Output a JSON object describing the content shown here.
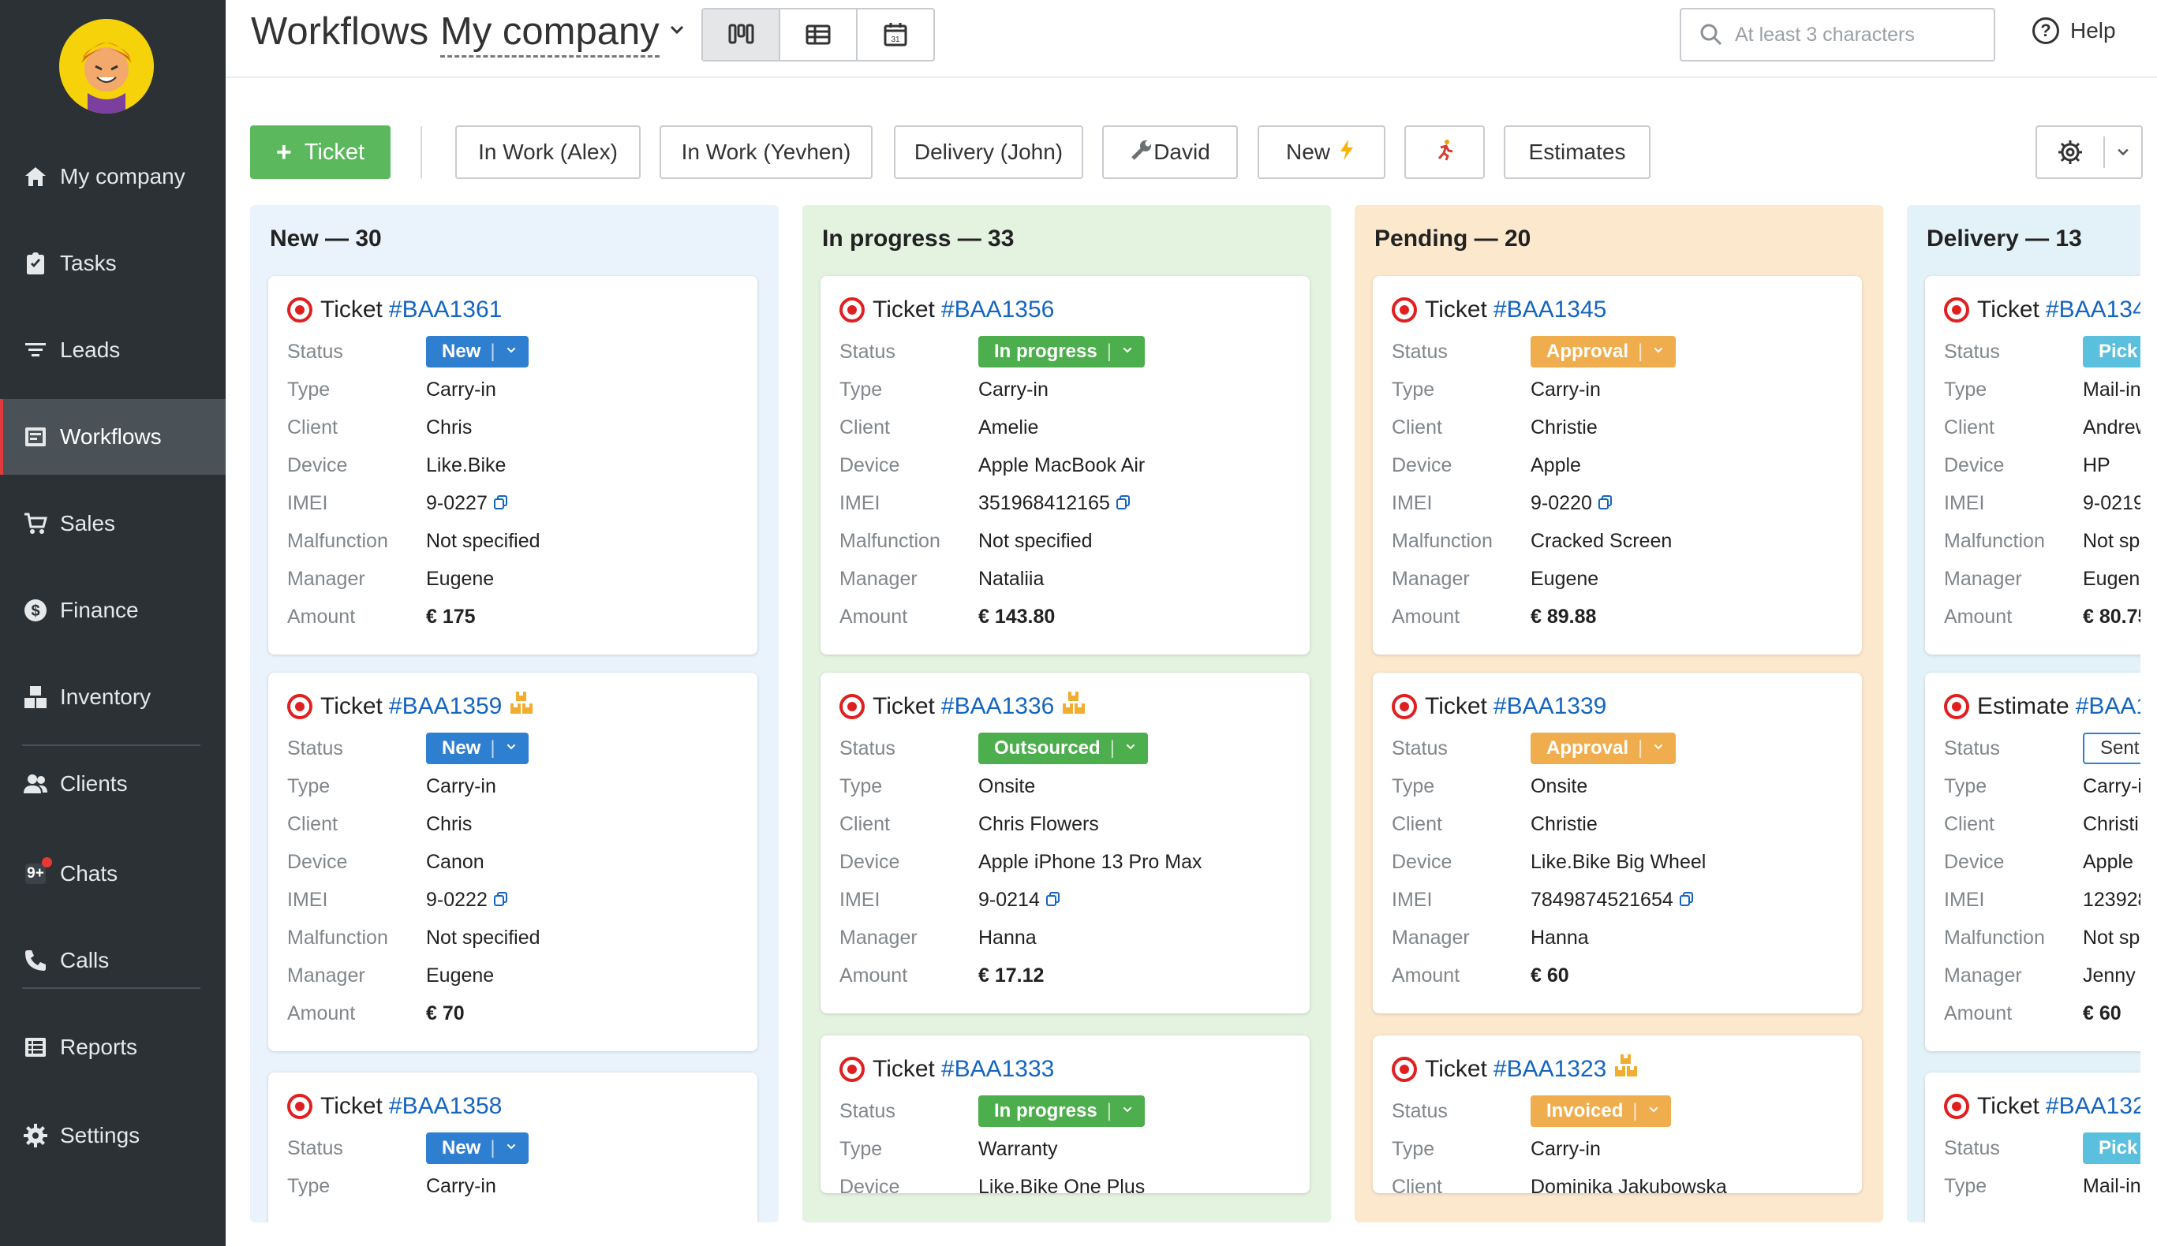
{
  "sidebar": {
    "items": [
      {
        "label": "My company",
        "icon": "home-icon"
      },
      {
        "label": "Tasks",
        "icon": "clipboard-check-icon"
      },
      {
        "label": "Leads",
        "icon": "filter-icon"
      },
      {
        "label": "Workflows",
        "icon": "board-icon",
        "active": true
      },
      {
        "label": "Sales",
        "icon": "cart-icon"
      },
      {
        "label": "Finance",
        "icon": "dollar-icon"
      },
      {
        "label": "Inventory",
        "icon": "boxes-icon"
      },
      {
        "label": "Clients",
        "icon": "users-icon"
      },
      {
        "label": "Chats",
        "icon": "chat-icon",
        "badge": "9+"
      },
      {
        "label": "Calls",
        "icon": "phone-icon"
      },
      {
        "label": "Reports",
        "icon": "reports-icon"
      },
      {
        "label": "Settings",
        "icon": "gear-icon"
      }
    ]
  },
  "header": {
    "title": "Workflows",
    "company": "My company",
    "search_placeholder": "At least 3 characters",
    "help_label": "Help",
    "help_icon_text": "?"
  },
  "filters": {
    "add_label": "Ticket",
    "add_plus": "+",
    "buttons": [
      "In Work (Alex)",
      "In Work (Yevhen)",
      "Delivery (John)",
      "David",
      "New",
      "",
      "Estimates"
    ]
  },
  "columns": [
    {
      "title": "New — 30",
      "cards": [
        {
          "kind": "Ticket",
          "id": "#BAA1361",
          "boxes": false,
          "status": "New",
          "type": "Carry-in",
          "client": "Chris",
          "device": "Like.Bike",
          "imei": "9-0227",
          "malfunction": "Not specified",
          "manager": "Eugene",
          "amount": "€ 175"
        },
        {
          "kind": "Ticket",
          "id": "#BAA1359",
          "boxes": true,
          "status": "New",
          "type": "Carry-in",
          "client": "Chris",
          "device": "Canon",
          "imei": "9-0222",
          "malfunction": "Not specified",
          "manager": "Eugene",
          "amount": "€ 70"
        },
        {
          "kind": "Ticket",
          "id": "#BAA1358",
          "boxes": false,
          "status": "New",
          "type": "Carry-in"
        }
      ]
    },
    {
      "title": "In progress — 33",
      "cards": [
        {
          "kind": "Ticket",
          "id": "#BAA1356",
          "boxes": false,
          "status": "In progress",
          "type": "Carry-in",
          "client": "Amelie",
          "device": "Apple MacBook Air",
          "imei": "351968412165",
          "malfunction": "Not specified",
          "manager": "Nataliia",
          "amount": "€ 143.80"
        },
        {
          "kind": "Ticket",
          "id": "#BAA1336",
          "boxes": true,
          "status": "Outsourced",
          "type": "Onsite",
          "client": "Chris Flowers",
          "device": "Apple iPhone 13 Pro Max",
          "imei": "9-0214",
          "manager": "Hanna",
          "amount": "€ 17.12"
        },
        {
          "kind": "Ticket",
          "id": "#BAA1333",
          "boxes": false,
          "status": "In progress",
          "type": "Warranty",
          "device": "Like.Bike One Plus"
        }
      ]
    },
    {
      "title": "Pending — 20",
      "cards": [
        {
          "kind": "Ticket",
          "id": "#BAA1345",
          "boxes": false,
          "status": "Approval",
          "type": "Carry-in",
          "client": "Christie",
          "device": "Apple",
          "imei": "9-0220",
          "malfunction": "Cracked Screen",
          "manager": "Eugene",
          "amount": "€ 89.88"
        },
        {
          "kind": "Ticket",
          "id": "#BAA1339",
          "boxes": false,
          "status": "Approval",
          "type": "Onsite",
          "client": "Christie",
          "device": "Like.Bike Big Wheel",
          "imei": "7849874521654",
          "manager": "Hanna",
          "amount": "€ 60"
        },
        {
          "kind": "Ticket",
          "id": "#BAA1323",
          "boxes": true,
          "status": "Invoiced",
          "type": "Carry-in",
          "client": "Dominika Jakubowska"
        }
      ]
    },
    {
      "title": "Delivery — 13",
      "cards": [
        {
          "kind": "Ticket",
          "id": "#BAA134",
          "boxes": false,
          "status": "Pick",
          "type": "Mail-in",
          "client": "Andrew",
          "device": "HP",
          "imei": "9-0219",
          "malfunction": "Not sp",
          "manager": "Eugene",
          "amount": "€ 80.75"
        },
        {
          "kind": "Estimate",
          "id": "#BAA1",
          "boxes": false,
          "status": "Sent",
          "type": "Carry-i",
          "client": "Christi",
          "device": "Apple",
          "imei": "123928",
          "malfunction": "Not sp",
          "manager": "Jenny",
          "amount": "€ 60"
        },
        {
          "kind": "Ticket",
          "id": "#BAA132",
          "boxes": false,
          "status": "Pick",
          "type": "Mail-in"
        }
      ]
    }
  ],
  "labels": {
    "status": "Status",
    "type": "Type",
    "client": "Client",
    "device": "Device",
    "imei": "IMEI",
    "malfunction": "Malfunction",
    "manager": "Manager",
    "amount": "Amount"
  },
  "colors": {
    "sidebar_bg": "#2b3135",
    "accent_green": "#5cb85c",
    "link_blue": "#1565c0",
    "status_new": "#2f7fd1",
    "status_progress": "#4cae4c",
    "status_pending": "#f0ad4e",
    "status_delivery": "#5bc0de"
  }
}
